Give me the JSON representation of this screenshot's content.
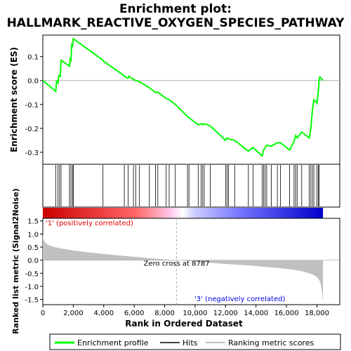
{
  "chart_data": {
    "type": "line",
    "title_line1": "Enrichment plot:",
    "title_line2": "HALLMARK_REACTIVE_OXYGEN_SPECIES_PATHWAY",
    "top_panel": {
      "ylabel": "Enrichment score (ES)",
      "ylim": [
        -0.35,
        0.19
      ],
      "yticks": [
        -0.3,
        -0.2,
        -0.1,
        0.0,
        0.1
      ],
      "ytick_labels": [
        "-0.3",
        "-0.2",
        "-0.1",
        "0.0",
        "0.1"
      ],
      "series_name": "Enrichment profile",
      "color": "#00ff00",
      "x": [
        0,
        850,
        900,
        1000,
        1050,
        1150,
        1200,
        1750,
        1800,
        1850,
        1900,
        1950,
        2000,
        3950,
        4000,
        5350,
        5400,
        5600,
        5650,
        5950,
        6100,
        6350,
        7000,
        7400,
        7550,
        8100,
        8300,
        8700,
        9500,
        9600,
        10200,
        10400,
        10500,
        10600,
        11000,
        12000,
        12100,
        12200,
        12600,
        13500,
        13800,
        14400,
        14500,
        14600,
        14700,
        15000,
        15400,
        15600,
        16200,
        16500,
        16600,
        16700,
        17000,
        17500,
        17600,
        17700,
        17800,
        18000,
        18100,
        18150,
        18200,
        18400
      ],
      "y": [
        0.0,
        -0.045,
        -0.003,
        -0.01,
        0.02,
        0.018,
        0.085,
        0.06,
        0.09,
        0.085,
        0.15,
        0.145,
        0.175,
        0.085,
        0.08,
        0.02,
        0.015,
        0.01,
        0.018,
        0.005,
        0.0,
        -0.005,
        -0.03,
        -0.05,
        -0.048,
        -0.075,
        -0.08,
        -0.1,
        -0.15,
        -0.155,
        -0.185,
        -0.18,
        -0.185,
        -0.18,
        -0.19,
        -0.25,
        -0.24,
        -0.245,
        -0.25,
        -0.295,
        -0.28,
        -0.315,
        -0.29,
        -0.28,
        -0.27,
        -0.275,
        -0.26,
        -0.26,
        -0.29,
        -0.255,
        -0.23,
        -0.24,
        -0.215,
        -0.24,
        -0.2,
        -0.125,
        -0.08,
        -0.095,
        -0.04,
        0.01,
        0.015,
        0.0
      ]
    },
    "hits_panel": {
      "series_name": "Hits",
      "hit_positions": [
        850,
        1000,
        1100,
        1200,
        1750,
        1850,
        1950,
        2000,
        3950,
        5350,
        5600,
        5950,
        6100,
        6350,
        7000,
        7400,
        7550,
        8100,
        8300,
        8700,
        9500,
        9600,
        10200,
        10400,
        10500,
        10600,
        11000,
        12000,
        12100,
        12200,
        12600,
        13500,
        13800,
        14400,
        14500,
        14600,
        14700,
        15000,
        15400,
        15600,
        16200,
        16500,
        16600,
        16700,
        17000,
        17500,
        17600,
        17700,
        17800,
        18000,
        18100,
        18150
      ]
    },
    "heat_bar": {
      "label_positive": "'1' (positively correlated)",
      "label_negative": "'3' (negatively correlated)",
      "positive_color": "#cc0000",
      "negative_color": "#0000cc"
    },
    "bottom_panel": {
      "ylabel": "Ranked list metric (Signal2Noise)",
      "ylim": [
        -1.7,
        1.6
      ],
      "yticks": [
        -1.5,
        -1.0,
        -0.5,
        0.0,
        0.5,
        1.0,
        1.5
      ],
      "ytick_labels": [
        "-1.5",
        "-1.0",
        "-0.5",
        "0.0",
        "0.5",
        "1.0",
        "1.5"
      ],
      "series_name": "Ranking metric scores",
      "fill_color": "#c0c0c0",
      "x": [
        0,
        50,
        150,
        300,
        600,
        1000,
        1500,
        2000,
        3000,
        4000,
        5000,
        6000,
        7000,
        8000,
        8787,
        9500,
        10500,
        11500,
        12500,
        13500,
        14500,
        15500,
        16500,
        17000,
        17500,
        17800,
        18000,
        18150,
        18250,
        18350,
        18400
      ],
      "y": [
        1.0,
        0.78,
        0.68,
        0.6,
        0.53,
        0.47,
        0.42,
        0.37,
        0.3,
        0.24,
        0.18,
        0.13,
        0.08,
        0.03,
        0.0,
        -0.03,
        -0.08,
        -0.12,
        -0.16,
        -0.2,
        -0.25,
        -0.3,
        -0.37,
        -0.42,
        -0.5,
        -0.57,
        -0.65,
        -0.75,
        -0.9,
        -1.3,
        -1.65
      ],
      "zero_cross_label": "Zero cross at 8787",
      "zero_cross": 8787
    },
    "xlabel": "Rank in Ordered Dataset",
    "xlim": [
      0,
      19500
    ],
    "xticks": [
      0,
      2000,
      4000,
      6000,
      8000,
      10000,
      12000,
      14000,
      16000,
      18000
    ],
    "xtick_labels": [
      "0",
      "2,000",
      "4,000",
      "6,000",
      "8,000",
      "10,000",
      "12,000",
      "14,000",
      "16,000",
      "18,000"
    ],
    "n_genes": 18400,
    "legend": [
      {
        "label": "Enrichment profile",
        "color": "#00ff00"
      },
      {
        "label": "Hits",
        "color": "#000000"
      },
      {
        "label": "Ranking metric scores",
        "color": "#c0c0c0"
      }
    ]
  }
}
